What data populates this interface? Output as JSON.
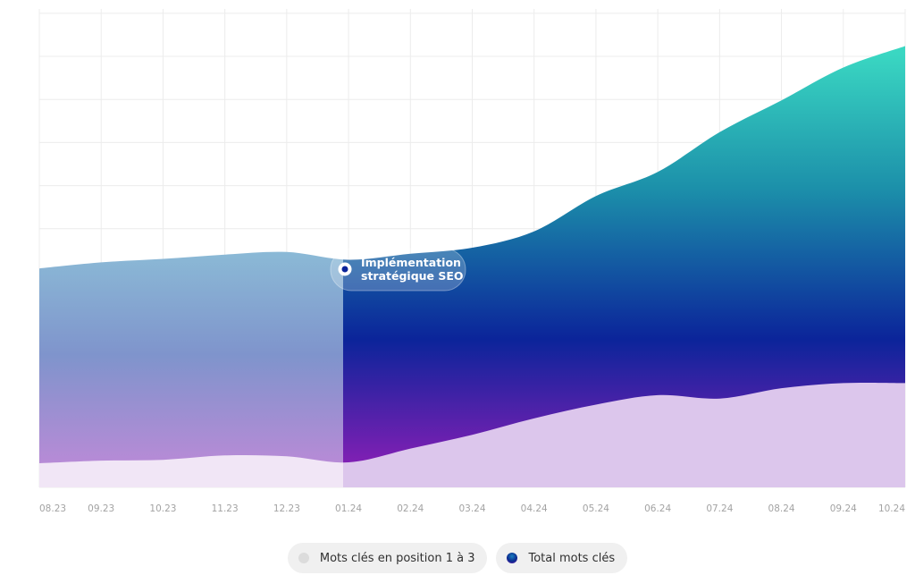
{
  "chart_data": {
    "type": "area",
    "categories": [
      "08.23",
      "09.23",
      "10.23",
      "11.23",
      "12.23",
      "01.24",
      "02.24",
      "03.24",
      "04.24",
      "05.24",
      "06.24",
      "07.24",
      "08.24",
      "09.24",
      "10.24"
    ],
    "series": [
      {
        "name": "Total mots clés",
        "values": [
          254,
          261,
          265,
          270,
          273,
          264,
          271,
          278,
          297,
          338,
          366,
          412,
          449,
          487,
          512
        ]
      },
      {
        "name": "Mots clés en position 1 à 3",
        "values": [
          28,
          31,
          32,
          37,
          36,
          29,
          45,
          61,
          80,
          96,
          107,
          103,
          115,
          121,
          121
        ]
      }
    ],
    "ylim": [
      0,
      555
    ],
    "grid": true,
    "annotation": {
      "category": "01.24",
      "text_lines": [
        "Implémentation",
        "stratégique SEO"
      ]
    },
    "legend_position": "bottom",
    "colors": {
      "top_gradient": "#3ad7c2",
      "mid_gradient": "#0b249a",
      "bottom_gradient": "#8a1fb6",
      "light_fill": "#dcc6ec"
    }
  },
  "legend": {
    "items": [
      {
        "label": "Mots clés en position 1 à 3"
      },
      {
        "label": "Total mots clés"
      }
    ]
  }
}
